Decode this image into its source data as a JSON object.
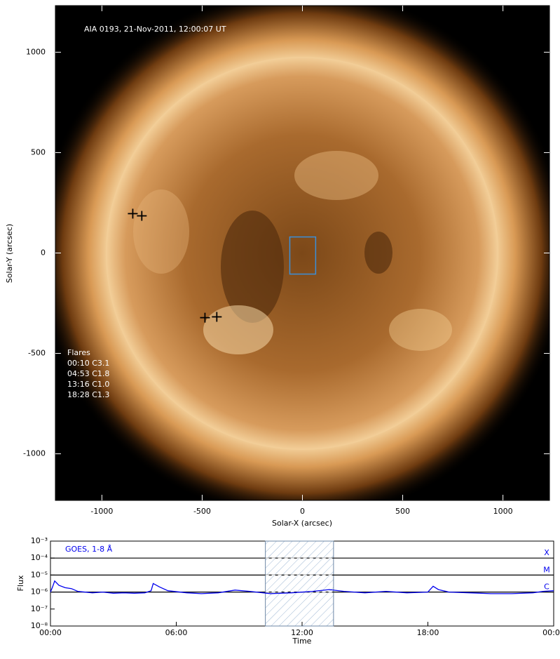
{
  "chart_data": [
    {
      "type": "image",
      "title": "AIA 0193, 21-Nov-2011, 12:00:07 UT",
      "xlabel": "Solar-X (arcsec)",
      "ylabel": "Solar-Y (arcsec)",
      "xlim": [
        -1232,
        1232
      ],
      "ylim": [
        -1232,
        1232
      ],
      "xticks": [
        -1000,
        -500,
        0,
        500,
        1000
      ],
      "yticks": [
        -1000,
        -500,
        0,
        500,
        1000
      ],
      "flares_title": "Flares",
      "flares": [
        "00:10 C3.1",
        "04:53 C1.8",
        "13:16 C1.0",
        "18:28 C1.3"
      ],
      "series": [
        {
          "name": "flare positions",
          "color": "#000000",
          "x": [
            -846,
            -801,
            -486,
            -427
          ],
          "y": [
            196,
            185,
            -322,
            -318
          ]
        }
      ],
      "box": {
        "color": "#3b8fd9",
        "x": [
          -63,
          66
        ],
        "y": [
          -105,
          80
        ]
      }
    },
    {
      "type": "line",
      "log_y": true,
      "xlabel": "Time",
      "ylabel": "Flux",
      "xlim": [
        0,
        24
      ],
      "ylim": [
        1e-08,
        0.001
      ],
      "xticks": [
        {
          "value": 0,
          "label": "00:00"
        },
        {
          "value": 6,
          "label": "06:00"
        },
        {
          "value": 12,
          "label": "12:00"
        },
        {
          "value": 18,
          "label": "18:00"
        },
        {
          "value": 24,
          "label": "00:00"
        }
      ],
      "yticks": [
        {
          "value": 1e-08,
          "label": "10⁻⁸"
        },
        {
          "value": 1e-07,
          "label": "10⁻⁷"
        },
        {
          "value": 1e-06,
          "label": "10⁻⁶"
        },
        {
          "value": 1e-05,
          "label": "10⁻⁵"
        },
        {
          "value": 0.0001,
          "label": "10⁻⁴"
        },
        {
          "value": 0.001,
          "label": "10⁻³"
        }
      ],
      "levels": [
        {
          "value": 0.0001,
          "label": "X"
        },
        {
          "value": 1e-05,
          "label": "M"
        },
        {
          "value": 1e-06,
          "label": "C"
        }
      ],
      "highlight": [
        10.25,
        13.5
      ],
      "series": [
        {
          "name": "GOES, 1-8 Å",
          "color": "#0000ee",
          "x": [
            0,
            0.1,
            0.2,
            0.4,
            0.7,
            1.0,
            1.3,
            2,
            2.5,
            3,
            3.5,
            4,
            4.5,
            4.8,
            4.9,
            5.2,
            5.6,
            6.5,
            7.2,
            8,
            8.8,
            9.5,
            10.5,
            11.5,
            12.5,
            13.3,
            14,
            15,
            16,
            17,
            18,
            18.25,
            18.5,
            19,
            20,
            21,
            22,
            23,
            23.5,
            24
          ],
          "values": [
            1e-06,
            2e-06,
            4.5e-06,
            2.5e-06,
            1.8e-06,
            1.6e-06,
            1.1e-06,
            9e-07,
            1e-06,
            8.5e-07,
            9e-07,
            8.5e-07,
            9e-07,
            1.2e-06,
            3.2e-06,
            2e-06,
            1.2e-06,
            9e-07,
            8e-07,
            9e-07,
            1.3e-06,
            1.1e-06,
            8e-07,
            9e-07,
            1.1e-06,
            1.4e-06,
            1.1e-06,
            9e-07,
            1.1e-06,
            9e-07,
            1e-06,
            2.2e-06,
            1.4e-06,
            1e-06,
            9e-07,
            8e-07,
            8e-07,
            9e-07,
            1.1e-06,
            1.2e-06
          ]
        }
      ]
    }
  ]
}
